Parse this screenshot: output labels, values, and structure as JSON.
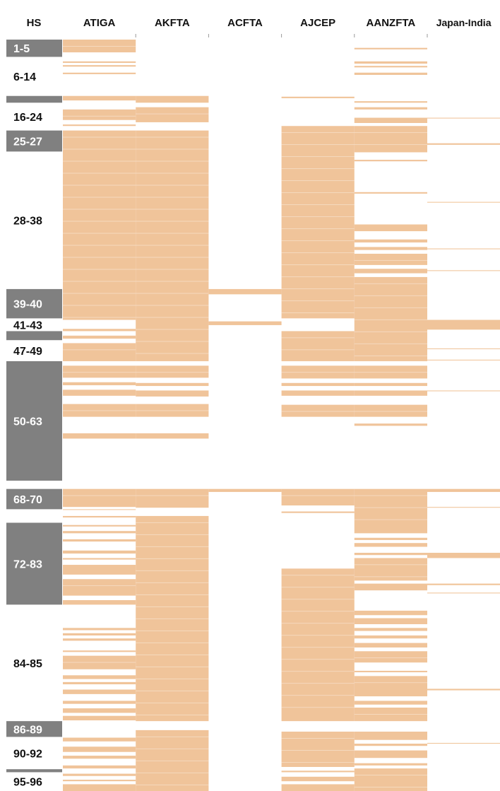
{
  "chart_data": {
    "type": "heatmap",
    "row_header": "HS",
    "columns": [
      "ATIGA",
      "AKFTA",
      "ACFTA",
      "AJCEP",
      "AANZFTA",
      "Japan-India"
    ],
    "hs_groups": [
      {
        "label": "1-5",
        "start": 0.0,
        "end": 0.023,
        "shaded": true
      },
      {
        "label": "6-14",
        "start": 0.023,
        "end": 0.075,
        "shaded": false
      },
      {
        "label": "",
        "start": 0.075,
        "end": 0.084,
        "shaded": true
      },
      {
        "label": "16-24",
        "start": 0.084,
        "end": 0.121,
        "shaded": false
      },
      {
        "label": "25-27",
        "start": 0.121,
        "end": 0.149,
        "shaded": true
      },
      {
        "label": "28-38",
        "start": 0.149,
        "end": 0.332,
        "shaded": false
      },
      {
        "label": "39-40",
        "start": 0.332,
        "end": 0.371,
        "shaded": true
      },
      {
        "label": "41-43",
        "start": 0.371,
        "end": 0.388,
        "shaded": false
      },
      {
        "label": "",
        "start": 0.388,
        "end": 0.4,
        "shaded": true
      },
      {
        "label": "47-49",
        "start": 0.4,
        "end": 0.428,
        "shaded": false
      },
      {
        "label": "50-63",
        "start": 0.428,
        "end": 0.587,
        "shaded": true
      },
      {
        "label": "68-70",
        "start": 0.598,
        "end": 0.625,
        "shaded": true
      },
      {
        "label": "72-83",
        "start": 0.643,
        "end": 0.752,
        "shaded": true
      },
      {
        "label": "84-85",
        "start": 0.752,
        "end": 0.907,
        "shaded": false
      },
      {
        "label": "86-89",
        "start": 0.907,
        "end": 0.928,
        "shaded": true
      },
      {
        "label": "90-92",
        "start": 0.928,
        "end": 0.971,
        "shaded": false
      },
      {
        "label": "",
        "start": 0.971,
        "end": 0.975,
        "shaded": true
      },
      {
        "label": "95-96",
        "start": 0.975,
        "end": 1.0,
        "shaded": false
      }
    ],
    "fill_color": "#F0C49A",
    "stripe_color": "#FFFFFF",
    "group_shade_color": "#808080",
    "group_label_light": "#FFFFFF",
    "group_label_dark": "#111111",
    "series": [
      {
        "name": "ATIGA",
        "filled": [
          [
            0.0,
            0.017
          ],
          [
            0.029,
            0.031
          ],
          [
            0.034,
            0.036
          ],
          [
            0.044,
            0.046
          ],
          [
            0.075,
            0.081
          ],
          [
            0.093,
            0.107
          ],
          [
            0.113,
            0.115
          ],
          [
            0.121,
            0.373
          ],
          [
            0.385,
            0.388
          ],
          [
            0.394,
            0.398
          ],
          [
            0.404,
            0.428
          ],
          [
            0.434,
            0.45
          ],
          [
            0.456,
            0.46
          ],
          [
            0.466,
            0.474
          ],
          [
            0.485,
            0.502
          ],
          [
            0.524,
            0.531
          ],
          [
            0.598,
            0.622
          ],
          [
            0.625,
            0.626
          ],
          [
            0.634,
            0.636
          ],
          [
            0.646,
            0.648
          ],
          [
            0.654,
            0.657
          ],
          [
            0.665,
            0.668
          ],
          [
            0.68,
            0.684
          ],
          [
            0.69,
            0.692
          ],
          [
            0.699,
            0.712
          ],
          [
            0.718,
            0.74
          ],
          [
            0.746,
            0.752
          ],
          [
            0.783,
            0.786
          ],
          [
            0.79,
            0.793
          ],
          [
            0.797,
            0.8
          ],
          [
            0.813,
            0.815
          ],
          [
            0.82,
            0.838
          ],
          [
            0.846,
            0.851
          ],
          [
            0.855,
            0.858
          ],
          [
            0.865,
            0.871
          ],
          [
            0.88,
            0.884
          ],
          [
            0.89,
            0.896
          ],
          [
            0.9,
            0.906
          ],
          [
            0.929,
            0.934
          ],
          [
            0.941,
            0.948
          ],
          [
            0.953,
            0.957
          ],
          [
            0.966,
            0.97
          ],
          [
            0.977,
            0.98
          ],
          [
            0.985,
            0.987
          ],
          [
            0.991,
            1.0
          ]
        ]
      },
      {
        "name": "AKFTA",
        "filled": [
          [
            0.075,
            0.084
          ],
          [
            0.09,
            0.11
          ],
          [
            0.121,
            0.428
          ],
          [
            0.434,
            0.45
          ],
          [
            0.457,
            0.461
          ],
          [
            0.467,
            0.475
          ],
          [
            0.485,
            0.502
          ],
          [
            0.524,
            0.531
          ],
          [
            0.598,
            0.623
          ],
          [
            0.634,
            0.907
          ],
          [
            0.919,
            1.0
          ]
        ]
      },
      {
        "name": "ACFTA",
        "filled": [
          [
            0.332,
            0.339
          ],
          [
            0.375,
            0.38
          ],
          [
            0.598,
            0.602
          ]
        ]
      },
      {
        "name": "AJCEP",
        "filled": [
          [
            0.076,
            0.078
          ],
          [
            0.115,
            0.371
          ],
          [
            0.388,
            0.428
          ],
          [
            0.434,
            0.451
          ],
          [
            0.457,
            0.461
          ],
          [
            0.467,
            0.474
          ],
          [
            0.486,
            0.502
          ],
          [
            0.598,
            0.62
          ],
          [
            0.628,
            0.63
          ],
          [
            0.704,
            0.907
          ],
          [
            0.921,
            0.968
          ],
          [
            0.973,
            0.975
          ],
          [
            0.981,
            0.987
          ],
          [
            0.991,
            1.0
          ]
        ]
      },
      {
        "name": "AANZFTA",
        "filled": [
          [
            0.011,
            0.013
          ],
          [
            0.029,
            0.032
          ],
          [
            0.035,
            0.037
          ],
          [
            0.044,
            0.047
          ],
          [
            0.082,
            0.084
          ],
          [
            0.09,
            0.093
          ],
          [
            0.104,
            0.111
          ],
          [
            0.115,
            0.15
          ],
          [
            0.16,
            0.162
          ],
          [
            0.203,
            0.205
          ],
          [
            0.246,
            0.255
          ],
          [
            0.266,
            0.27
          ],
          [
            0.276,
            0.28
          ],
          [
            0.285,
            0.3
          ],
          [
            0.305,
            0.311
          ],
          [
            0.316,
            0.428
          ],
          [
            0.434,
            0.451
          ],
          [
            0.457,
            0.461
          ],
          [
            0.467,
            0.474
          ],
          [
            0.486,
            0.502
          ],
          [
            0.511,
            0.514
          ],
          [
            0.598,
            0.657
          ],
          [
            0.663,
            0.666
          ],
          [
            0.67,
            0.675
          ],
          [
            0.683,
            0.686
          ],
          [
            0.69,
            0.72
          ],
          [
            0.724,
            0.733
          ],
          [
            0.76,
            0.766
          ],
          [
            0.77,
            0.778
          ],
          [
            0.783,
            0.787
          ],
          [
            0.793,
            0.797
          ],
          [
            0.803,
            0.809
          ],
          [
            0.814,
            0.829
          ],
          [
            0.84,
            0.842
          ],
          [
            0.847,
            0.874
          ],
          [
            0.88,
            0.885
          ],
          [
            0.889,
            0.907
          ],
          [
            0.921,
            0.932
          ],
          [
            0.937,
            0.94
          ],
          [
            0.946,
            0.956
          ],
          [
            0.963,
            0.966
          ],
          [
            0.97,
            1.0
          ]
        ]
      },
      {
        "name": "Japan-India",
        "filled": [
          [
            0.104,
            0.105
          ],
          [
            0.138,
            0.14
          ],
          [
            0.216,
            0.217
          ],
          [
            0.278,
            0.279
          ],
          [
            0.307,
            0.308
          ],
          [
            0.373,
            0.386
          ],
          [
            0.411,
            0.412
          ],
          [
            0.426,
            0.427
          ],
          [
            0.467,
            0.468
          ],
          [
            0.598,
            0.602
          ],
          [
            0.622,
            0.623
          ],
          [
            0.683,
            0.69
          ],
          [
            0.724,
            0.726
          ],
          [
            0.736,
            0.737
          ],
          [
            0.864,
            0.866
          ],
          [
            0.936,
            0.937
          ]
        ]
      }
    ]
  }
}
